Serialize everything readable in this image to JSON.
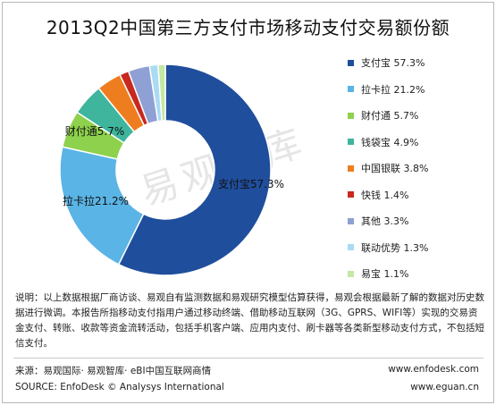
{
  "chart_data": {
    "type": "pie",
    "title": "2013Q2中国第三方支付市场移动支付交易额份额",
    "legend_position": "right",
    "slices": [
      {
        "name": "支付宝",
        "value": 57.3,
        "color": "#1f4e9c",
        "legend": "支付宝 57.3%",
        "label": "支付宝57.3%"
      },
      {
        "name": "拉卡拉",
        "value": 21.2,
        "color": "#5ab4e5",
        "legend": "拉卡拉 21.2%",
        "label": "拉卡拉21.2%"
      },
      {
        "name": "财付通",
        "value": 5.7,
        "color": "#8ed14d",
        "legend": "财付通 5.7%",
        "label": "财付通5.7%"
      },
      {
        "name": "钱袋宝",
        "value": 4.9,
        "color": "#3fb59d",
        "legend": "钱袋宝 4.9%",
        "label": ""
      },
      {
        "name": "中国银联",
        "value": 3.8,
        "color": "#ee7d1f",
        "legend": "中国银联 3.8%",
        "label": ""
      },
      {
        "name": "快钱",
        "value": 1.4,
        "color": "#c8281e",
        "legend": "快钱 1.4%",
        "label": ""
      },
      {
        "name": "其他",
        "value": 3.3,
        "color": "#8ea0d4",
        "legend": "其他 3.3%",
        "label": ""
      },
      {
        "name": "联动优势",
        "value": 1.3,
        "color": "#a9dbf3",
        "legend": "联动优势 1.3%",
        "label": ""
      },
      {
        "name": "易宝",
        "value": 1.1,
        "color": "#c3e8a3",
        "legend": "易宝 1.1%",
        "label": ""
      }
    ]
  },
  "watermark": "易观智库",
  "note": "说明：以上数据根据厂商访谈、易观自有监测数据和易观研究模型估算获得，易观会根据最新了解的数据对历史数据进行微调。本报告所指移动支付指用户通过移动终端、借助移动互联网（3G、GPRS、WIFI等）实现的交易资金支付、转账、收款等资金流转活动，包括手机客户端、应用内支付、刷卡器等各类新型移动支付方式，不包括短信支付。",
  "source": {
    "cn": "来源：易观国际· 易观智库· eBI中国互联网商情",
    "en": "SOURCE: EnfoDesk © Analysys International",
    "url1": "www.enfodesk.com",
    "url2": "www.eguan.cn"
  }
}
